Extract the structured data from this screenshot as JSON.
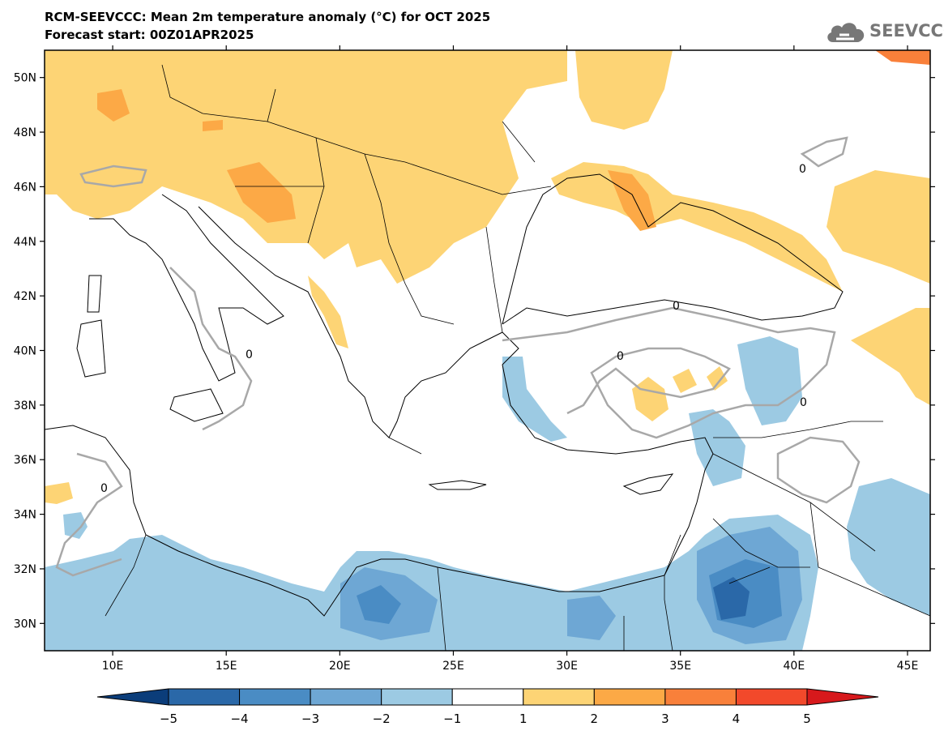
{
  "title": {
    "line1": "RCM-SEEVCCC: Mean 2m temperature anomaly (°C) for OCT 2025",
    "line2": "Forecast start: 00Z01APR2025"
  },
  "logo": {
    "text": "SEEVCCC",
    "icon": "cloud-icon"
  },
  "map": {
    "lat_range": [
      29,
      51
    ],
    "lon_range": [
      7,
      46
    ],
    "lat_ticks": [
      {
        "value": 30,
        "label": "30N"
      },
      {
        "value": 32,
        "label": "32N"
      },
      {
        "value": 34,
        "label": "34N"
      },
      {
        "value": 36,
        "label": "36N"
      },
      {
        "value": 38,
        "label": "38N"
      },
      {
        "value": 40,
        "label": "40N"
      },
      {
        "value": 42,
        "label": "42N"
      },
      {
        "value": 44,
        "label": "44N"
      },
      {
        "value": 46,
        "label": "46N"
      },
      {
        "value": 48,
        "label": "48N"
      },
      {
        "value": 50,
        "label": "50N"
      }
    ],
    "lon_ticks": [
      {
        "value": 10,
        "label": "10E"
      },
      {
        "value": 15,
        "label": "15E"
      },
      {
        "value": 20,
        "label": "20E"
      },
      {
        "value": 25,
        "label": "25E"
      },
      {
        "value": 30,
        "label": "30E"
      },
      {
        "value": 35,
        "label": "35E"
      },
      {
        "value": 40,
        "label": "40E"
      },
      {
        "value": 45,
        "label": "45E"
      }
    ],
    "zero_contour_label": "0"
  },
  "colorbar": {
    "levels": [
      "−5",
      "−4",
      "−3",
      "−2",
      "−1",
      "1",
      "2",
      "3",
      "4",
      "5"
    ],
    "colors": [
      "#0b3d7a",
      "#2a68a8",
      "#4a8cc4",
      "#6ea7d4",
      "#9ccae3",
      "#ffffff",
      "#fdd475",
      "#fca946",
      "#f9803a",
      "#f2492b",
      "#d7191c"
    ]
  }
}
